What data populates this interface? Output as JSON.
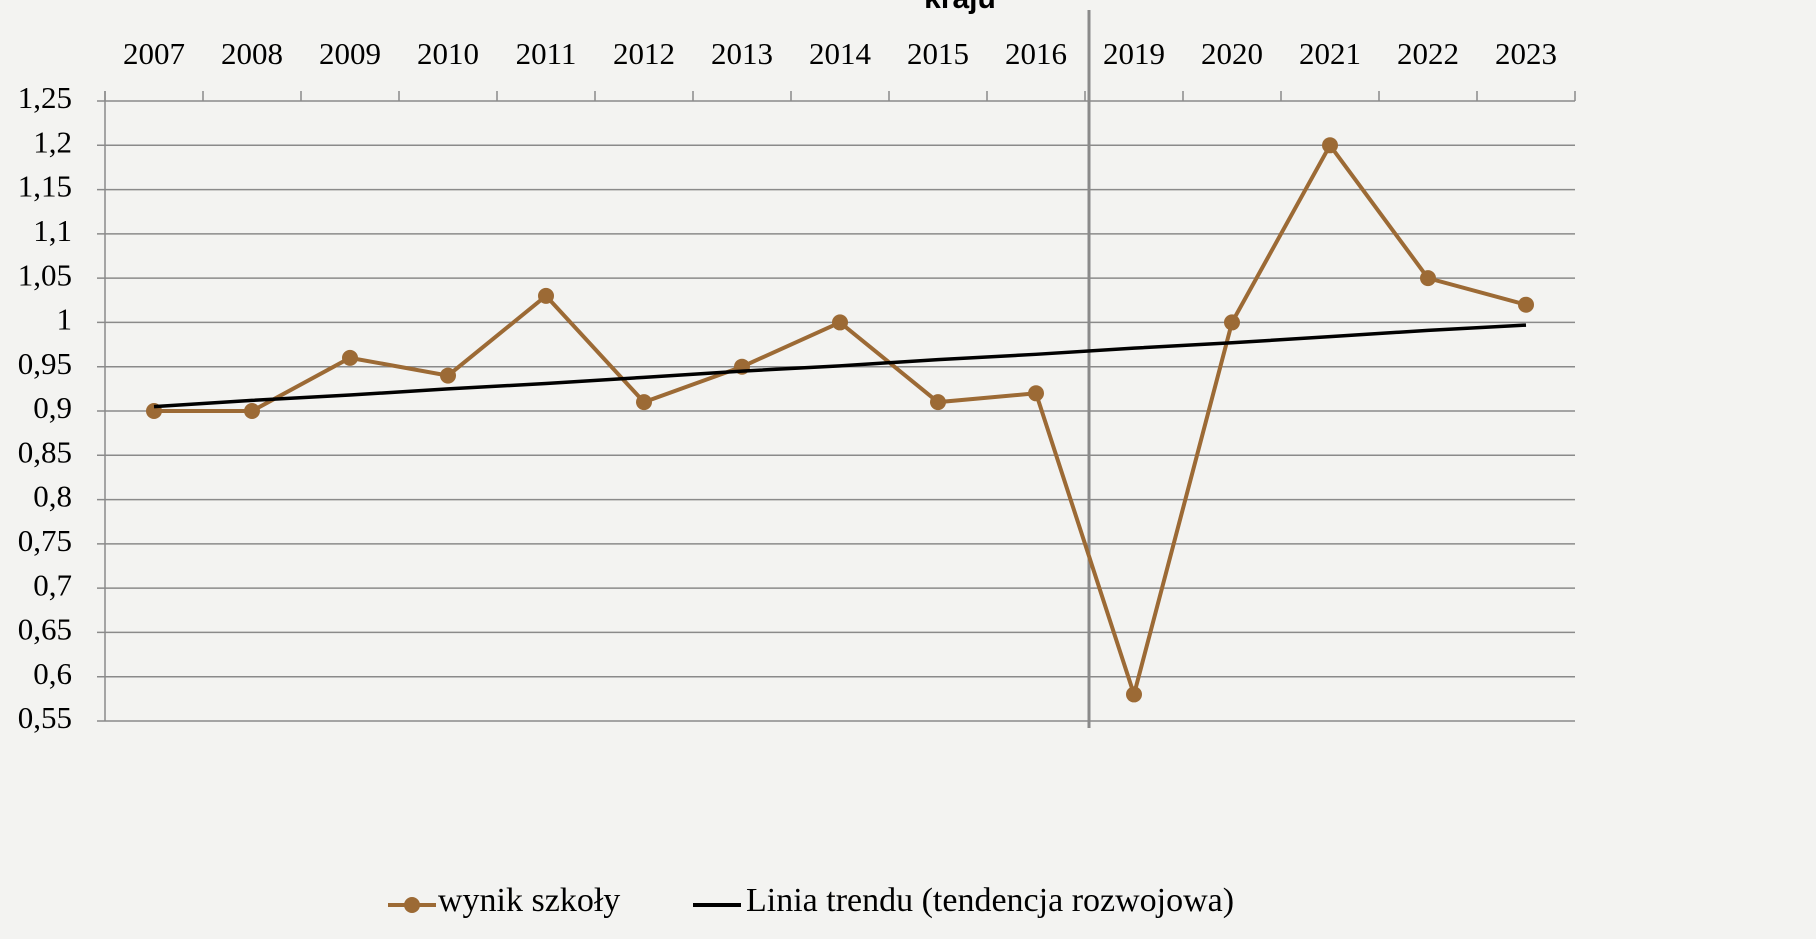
{
  "chart_data": {
    "type": "line",
    "title": "kraju",
    "categories": [
      "2007",
      "2008",
      "2009",
      "2010",
      "2011",
      "2012",
      "2013",
      "2014",
      "2015",
      "2016",
      "2019",
      "2020",
      "2021",
      "2022",
      "2023"
    ],
    "series": [
      {
        "name": "wynik szkoły",
        "color": "#9c6a35",
        "values": [
          0.9,
          0.9,
          0.96,
          0.94,
          1.03,
          0.91,
          0.95,
          1.0,
          0.91,
          0.92,
          0.58,
          1.0,
          1.2,
          1.05,
          1.02
        ]
      },
      {
        "name": "Linia trendu (tendencja rozwojowa)",
        "color": "#000000",
        "values": [
          0.905,
          0.912,
          0.918,
          0.925,
          0.931,
          0.938,
          0.945,
          0.951,
          0.958,
          0.964,
          0.971,
          0.977,
          0.984,
          0.991,
          0.997
        ]
      }
    ],
    "ylim": [
      0.55,
      1.25
    ],
    "yticks": [
      {
        "value": 0.55,
        "label": "0,55"
      },
      {
        "value": 0.6,
        "label": "0,6"
      },
      {
        "value": 0.65,
        "label": "0,65"
      },
      {
        "value": 0.7,
        "label": "0,7"
      },
      {
        "value": 0.75,
        "label": "0,75"
      },
      {
        "value": 0.8,
        "label": "0,8"
      },
      {
        "value": 0.85,
        "label": "0,85"
      },
      {
        "value": 0.9,
        "label": "0,9"
      },
      {
        "value": 0.95,
        "label": "0,95"
      },
      1,
      {
        "value": 1.05,
        "label": "1,05"
      },
      {
        "value": 1.1,
        "label": "1,1"
      },
      {
        "value": 1.15,
        "label": "1,15"
      },
      {
        "value": 1.2,
        "label": "1,2"
      },
      {
        "value": 1.25,
        "label": "1,25"
      }
    ],
    "grid": true
  }
}
